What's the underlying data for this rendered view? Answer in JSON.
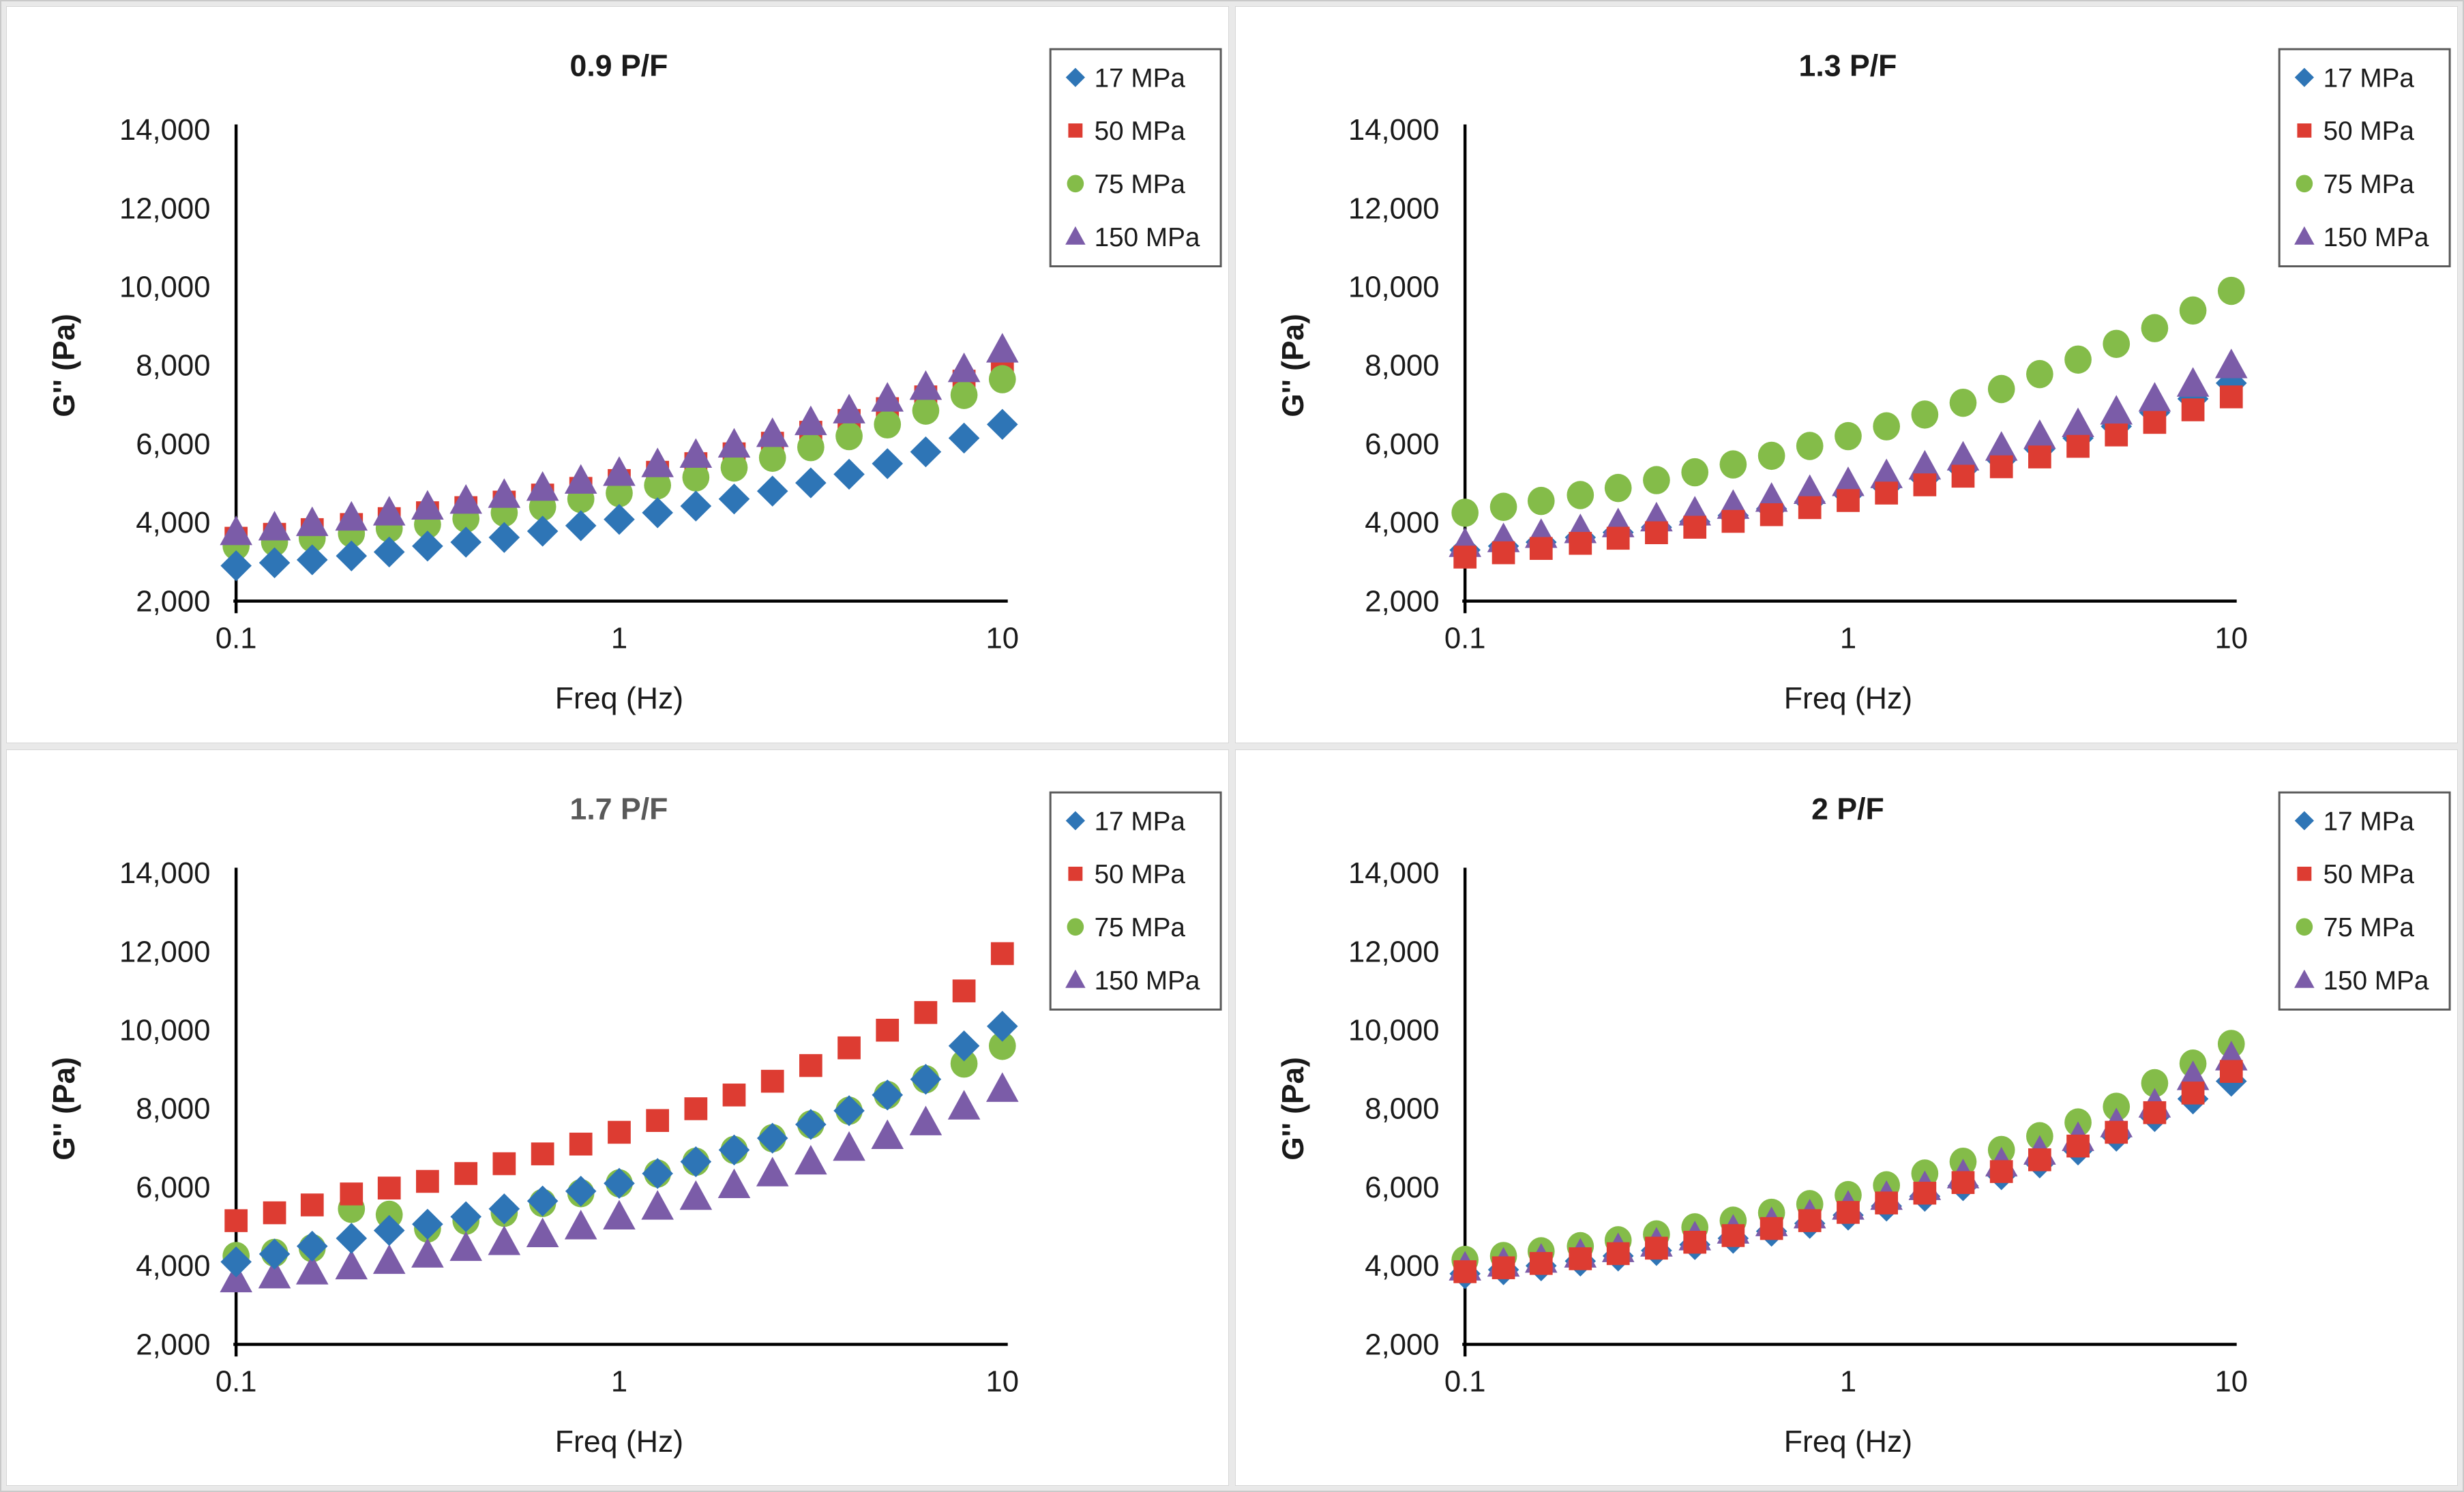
{
  "page": {
    "background": "#e9e9e9",
    "panel_background": "#ffffff",
    "panel_border_color": "#d6d6d6",
    "axis_color": "#000000",
    "tick_label_color": "#1a1a1a",
    "legend_border_color": "#595959"
  },
  "palette": {
    "blue": "#2E75B6",
    "red": "#DD3C32",
    "green": "#84BC49",
    "purple": "#7B5CA8"
  },
  "legend": {
    "items": [
      {
        "label": "17 MPa",
        "marker": "diamond",
        "color_key": "blue"
      },
      {
        "label": "50 MPa",
        "marker": "square",
        "color_key": "red"
      },
      {
        "label": "75 MPa",
        "marker": "circle",
        "color_key": "green"
      },
      {
        "label": "150 MPa",
        "marker": "triangle",
        "color_key": "purple"
      }
    ],
    "position": "top-right"
  },
  "chart_data": [
    {
      "type": "scatter",
      "title": "0.9 P/F",
      "title_color": "#1a1a1a",
      "xlabel": "Freq (Hz)",
      "ylabel": "G'' (Pa)",
      "xscale": "log",
      "xlim": [
        0.1,
        10
      ],
      "ylim": [
        2000,
        14000
      ],
      "yticks": [
        2000,
        4000,
        6000,
        8000,
        10000,
        12000,
        14000
      ],
      "ytick_labels": [
        "2,000",
        "4,000",
        "6,000",
        "8,000",
        "10,000",
        "12,000",
        "14,000"
      ],
      "xticks": [
        0.1,
        1,
        10
      ],
      "xtick_labels": [
        "0.1",
        "1",
        "10"
      ],
      "grid": false,
      "legend_position": "top-right",
      "x": [
        0.1,
        0.126,
        0.158,
        0.2,
        0.251,
        0.316,
        0.398,
        0.501,
        0.631,
        0.794,
        1.0,
        1.259,
        1.585,
        1.995,
        2.512,
        3.162,
        3.981,
        5.012,
        6.31,
        7.943,
        10.0
      ],
      "series": [
        {
          "name": "17 MPa",
          "marker": "diamond",
          "color_key": "blue",
          "values": [
            2900,
            2975,
            3050,
            3150,
            3250,
            3400,
            3500,
            3620,
            3780,
            3920,
            4080,
            4250,
            4420,
            4600,
            4800,
            5010,
            5230,
            5500,
            5800,
            6150,
            6500
          ]
        },
        {
          "name": "50 MPa",
          "marker": "square",
          "color_key": "red",
          "values": [
            3600,
            3700,
            3820,
            3950,
            4100,
            4250,
            4380,
            4520,
            4700,
            4870,
            5070,
            5280,
            5500,
            5750,
            6020,
            6300,
            6600,
            6900,
            7200,
            7600,
            8000
          ]
        },
        {
          "name": "75 MPa",
          "marker": "circle",
          "color_key": "green",
          "values": [
            3400,
            3500,
            3600,
            3720,
            3850,
            3950,
            4100,
            4250,
            4400,
            4600,
            4750,
            4950,
            5150,
            5400,
            5650,
            5920,
            6200,
            6500,
            6850,
            7250,
            7650
          ]
        },
        {
          "name": "150 MPa",
          "marker": "triangle",
          "color_key": "purple",
          "values": [
            3750,
            3870,
            3980,
            4120,
            4250,
            4400,
            4550,
            4700,
            4880,
            5060,
            5260,
            5480,
            5720,
            5980,
            6250,
            6550,
            6850,
            7150,
            7450,
            7900,
            8400
          ]
        }
      ],
      "draw_order": [
        1,
        2,
        0,
        3
      ]
    },
    {
      "type": "scatter",
      "title": "1.3 P/F",
      "title_color": "#1a1a1a",
      "xlabel": "Freq (Hz)",
      "ylabel": "G'' (Pa)",
      "xscale": "log",
      "xlim": [
        0.1,
        10
      ],
      "ylim": [
        2000,
        14000
      ],
      "yticks": [
        2000,
        4000,
        6000,
        8000,
        10000,
        12000,
        14000
      ],
      "ytick_labels": [
        "2,000",
        "4,000",
        "6,000",
        "8,000",
        "10,000",
        "12,000",
        "14,000"
      ],
      "xticks": [
        0.1,
        1,
        10
      ],
      "xtick_labels": [
        "0.1",
        "1",
        "10"
      ],
      "grid": false,
      "legend_position": "top-right",
      "x": [
        0.1,
        0.126,
        0.158,
        0.2,
        0.251,
        0.316,
        0.398,
        0.501,
        0.631,
        0.794,
        1.0,
        1.259,
        1.585,
        1.995,
        2.512,
        3.162,
        3.981,
        5.012,
        6.31,
        7.943,
        10.0
      ],
      "series": [
        {
          "name": "17 MPa",
          "marker": "diamond",
          "color_key": "blue",
          "values": [
            3300,
            3400,
            3500,
            3620,
            3750,
            3880,
            4020,
            4180,
            4350,
            4530,
            4720,
            4920,
            5130,
            5360,
            5600,
            5870,
            6150,
            6450,
            6800,
            7150,
            7550
          ]
        },
        {
          "name": "50 MPa",
          "marker": "square",
          "color_key": "red",
          "values": [
            3120,
            3230,
            3340,
            3470,
            3600,
            3740,
            3880,
            4030,
            4200,
            4380,
            4560,
            4750,
            4960,
            5180,
            5420,
            5670,
            5940,
            6230,
            6550,
            6870,
            7200
          ]
        },
        {
          "name": "75 MPa",
          "marker": "circle",
          "color_key": "green",
          "values": [
            4250,
            4400,
            4550,
            4700,
            4880,
            5080,
            5280,
            5480,
            5700,
            5950,
            6200,
            6450,
            6750,
            7050,
            7400,
            7780,
            8150,
            8550,
            8950,
            9400,
            9900
          ]
        },
        {
          "name": "150 MPa",
          "marker": "triangle",
          "color_key": "purple",
          "values": [
            3450,
            3570,
            3680,
            3800,
            3950,
            4100,
            4250,
            4420,
            4600,
            4800,
            5000,
            5200,
            5420,
            5650,
            5900,
            6200,
            6500,
            6820,
            7150,
            7530,
            8000
          ]
        }
      ],
      "draw_order": [
        0,
        3,
        1,
        2
      ]
    },
    {
      "type": "scatter",
      "title": "1.7 P/F",
      "title_color": "#595959",
      "xlabel": "Freq (Hz)",
      "ylabel": "G'' (Pa)",
      "xscale": "log",
      "xlim": [
        0.1,
        10
      ],
      "ylim": [
        2000,
        14000
      ],
      "yticks": [
        2000,
        4000,
        6000,
        8000,
        10000,
        12000,
        14000
      ],
      "ytick_labels": [
        "2,000",
        "4,000",
        "6,000",
        "8,000",
        "10,000",
        "12,000",
        "14,000"
      ],
      "xticks": [
        0.1,
        1,
        10
      ],
      "xtick_labels": [
        "0.1",
        "1",
        "10"
      ],
      "grid": false,
      "legend_position": "top-right",
      "x": [
        0.1,
        0.126,
        0.158,
        0.2,
        0.251,
        0.316,
        0.398,
        0.501,
        0.631,
        0.794,
        1.0,
        1.259,
        1.585,
        1.995,
        2.512,
        3.162,
        3.981,
        5.012,
        6.31,
        7.943,
        10.0
      ],
      "series": [
        {
          "name": "17 MPa",
          "marker": "diamond",
          "color_key": "blue",
          "values": [
            4100,
            4300,
            4500,
            4700,
            4900,
            5060,
            5250,
            5450,
            5650,
            5900,
            6100,
            6350,
            6650,
            6950,
            7250,
            7600,
            7950,
            8350,
            8750,
            9600,
            10100
          ]
        },
        {
          "name": "50 MPa",
          "marker": "square",
          "color_key": "red",
          "values": [
            5150,
            5350,
            5550,
            5830,
            5980,
            6150,
            6350,
            6600,
            6850,
            7100,
            7400,
            7700,
            8000,
            8350,
            8700,
            9100,
            9550,
            10000,
            10450,
            11000,
            11950
          ]
        },
        {
          "name": "75 MPa",
          "marker": "circle",
          "color_key": "green",
          "values": [
            4250,
            4330,
            4450,
            5450,
            5300,
            4950,
            5150,
            5350,
            5600,
            5850,
            6100,
            6350,
            6650,
            6950,
            7250,
            7600,
            7950,
            8350,
            8750,
            9150,
            9600
          ]
        },
        {
          "name": "150 MPa",
          "marker": "triangle",
          "color_key": "purple",
          "values": [
            3650,
            3750,
            3850,
            3980,
            4120,
            4280,
            4450,
            4600,
            4800,
            5000,
            5250,
            5500,
            5750,
            6050,
            6350,
            6650,
            7000,
            7300,
            7650,
            8050,
            8500
          ]
        }
      ],
      "draw_order": [
        2,
        3,
        0,
        1
      ]
    },
    {
      "type": "scatter",
      "title": "2 P/F",
      "title_color": "#1a1a1a",
      "xlabel": "Freq (Hz)",
      "ylabel": "G'' (Pa)",
      "xscale": "log",
      "xlim": [
        0.1,
        10
      ],
      "ylim": [
        2000,
        14000
      ],
      "yticks": [
        2000,
        4000,
        6000,
        8000,
        10000,
        12000,
        14000
      ],
      "ytick_labels": [
        "2,000",
        "4,000",
        "6,000",
        "8,000",
        "10,000",
        "12,000",
        "14,000"
      ],
      "xticks": [
        0.1,
        1,
        10
      ],
      "xtick_labels": [
        "0.1",
        "1",
        "10"
      ],
      "grid": false,
      "legend_position": "top-right",
      "x": [
        0.1,
        0.126,
        0.158,
        0.2,
        0.251,
        0.316,
        0.398,
        0.501,
        0.631,
        0.794,
        1.0,
        1.259,
        1.585,
        1.995,
        2.512,
        3.162,
        3.981,
        5.012,
        6.31,
        7.943,
        10.0
      ],
      "series": [
        {
          "name": "17 MPa",
          "marker": "diamond",
          "color_key": "blue",
          "values": [
            3800,
            3900,
            4000,
            4120,
            4250,
            4390,
            4540,
            4700,
            4880,
            5080,
            5290,
            5520,
            5770,
            6040,
            6320,
            6620,
            6950,
            7300,
            7800,
            8250,
            8700
          ]
        },
        {
          "name": "50 MPa",
          "marker": "square",
          "color_key": "red",
          "values": [
            3850,
            3950,
            4060,
            4180,
            4310,
            4450,
            4600,
            4770,
            4950,
            5150,
            5360,
            5600,
            5850,
            6120,
            6400,
            6700,
            7050,
            7400,
            7900,
            8400,
            8950
          ]
        },
        {
          "name": "75 MPa",
          "marker": "circle",
          "color_key": "green",
          "values": [
            4150,
            4250,
            4370,
            4500,
            4650,
            4800,
            4980,
            5150,
            5350,
            5570,
            5800,
            6050,
            6350,
            6650,
            6950,
            7300,
            7650,
            8050,
            8650,
            9150,
            9650
          ]
        },
        {
          "name": "150 MPa",
          "marker": "triangle",
          "color_key": "purple",
          "values": [
            3950,
            4050,
            4150,
            4280,
            4420,
            4560,
            4720,
            4890,
            5080,
            5280,
            5500,
            5750,
            6000,
            6300,
            6600,
            6900,
            7250,
            7600,
            8100,
            8800,
            9300
          ]
        }
      ],
      "draw_order": [
        0,
        2,
        3,
        1
      ]
    }
  ]
}
